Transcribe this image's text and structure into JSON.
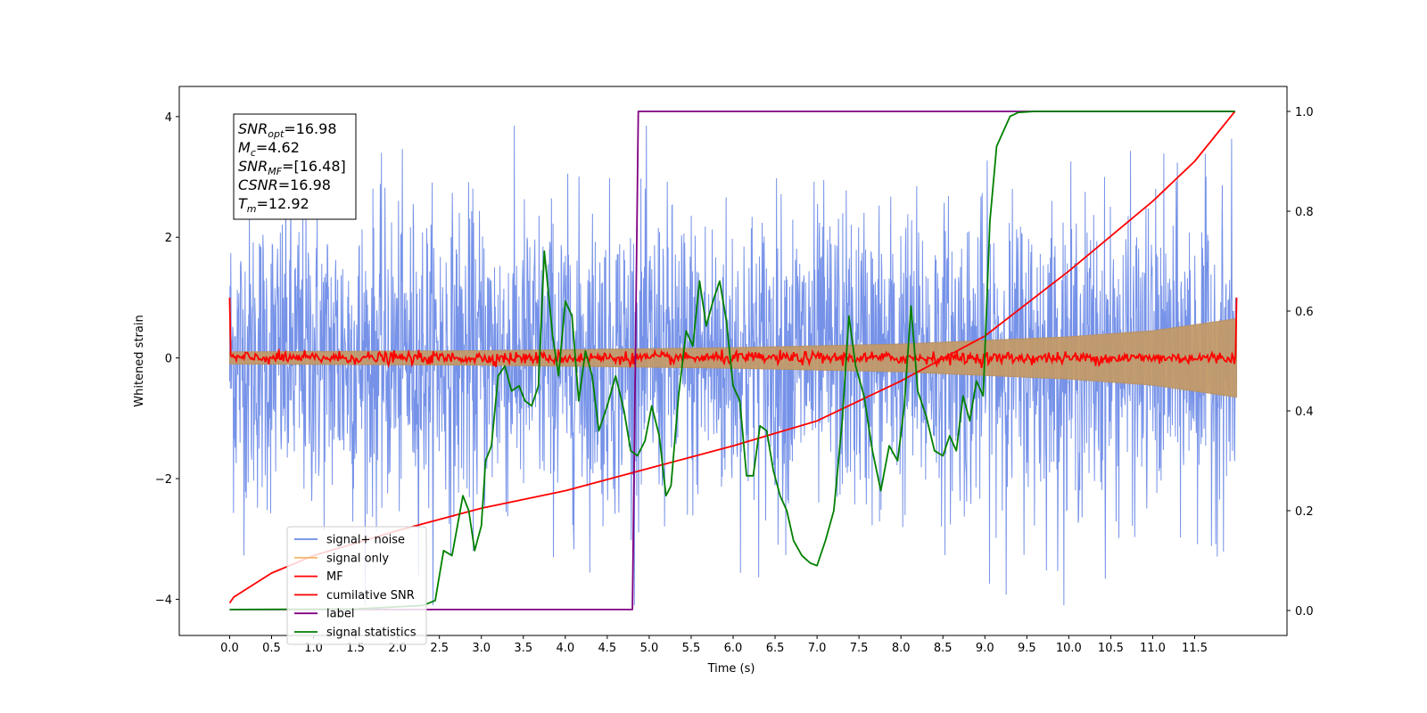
{
  "chart_data": {
    "type": "line",
    "xlabel": "Time (s)",
    "ylabel": "Whitened strain",
    "xlim": [
      -0.6,
      12.6
    ],
    "ylim": [
      -4.6,
      4.5
    ],
    "y2lim": [
      -0.05,
      1.05
    ],
    "x_ticks": [
      0.0,
      0.5,
      1.0,
      1.5,
      2.0,
      2.5,
      3.0,
      3.5,
      4.0,
      4.5,
      5.0,
      5.5,
      6.0,
      6.5,
      7.0,
      7.5,
      8.0,
      8.5,
      9.0,
      9.5,
      10.0,
      10.5,
      11.0,
      11.5
    ],
    "x_tick_labels": [
      "0.0",
      "0.5",
      "1.0",
      "1.5",
      "2.0",
      "2.5",
      "3.0",
      "3.5",
      "4.0",
      "4.5",
      "5.0",
      "5.5",
      "6.0",
      "6.5",
      "7.0",
      "7.5",
      "8.0",
      "8.5",
      "9.0",
      "9.5",
      "10.0",
      "10.5",
      "11.0",
      "11.5"
    ],
    "y_ticks": [
      -4,
      -2,
      0,
      2,
      4
    ],
    "y_tick_labels": [
      "−4",
      "−2",
      "0",
      "2",
      "4"
    ],
    "y2_ticks": [
      0.0,
      0.2,
      0.4,
      0.6,
      0.8,
      1.0
    ],
    "y2_tick_labels": [
      "0.0",
      "0.2",
      "0.4",
      "0.6",
      "0.8",
      "1.0"
    ],
    "grid": false,
    "legend_position": "lower-left",
    "series": [
      {
        "name": "signal+ noise",
        "color": "#6a89e6",
        "axis": "left",
        "t_range": [
          0.0,
          12.0
        ],
        "noise_amplitude": 1.6
      },
      {
        "name": "signal only",
        "color": "#f5b870",
        "axis": "left",
        "t_range": [
          0.0,
          12.0
        ],
        "envelope": [
          [
            0.0,
            0.1
          ],
          [
            3.0,
            0.12
          ],
          [
            6.0,
            0.17
          ],
          [
            8.0,
            0.23
          ],
          [
            10.0,
            0.35
          ],
          [
            11.0,
            0.45
          ],
          [
            12.0,
            0.65
          ]
        ]
      },
      {
        "name": "MF",
        "color": "#ff0000",
        "axis": "left",
        "t_range": [
          0.0,
          12.0
        ],
        "level": 0.0,
        "end_values": [
          1.0,
          1.0
        ]
      },
      {
        "name": "cumilative SNR",
        "color": "#ff0000",
        "axis": "right",
        "points": [
          [
            0.0,
            0.015
          ],
          [
            0.05,
            0.027
          ],
          [
            0.5,
            0.075
          ],
          [
            1.0,
            0.11
          ],
          [
            2.0,
            0.16
          ],
          [
            3.0,
            0.205
          ],
          [
            4.0,
            0.24
          ],
          [
            5.0,
            0.285
          ],
          [
            6.0,
            0.33
          ],
          [
            7.0,
            0.38
          ],
          [
            8.0,
            0.46
          ],
          [
            9.0,
            0.55
          ],
          [
            10.0,
            0.68
          ],
          [
            11.0,
            0.82
          ],
          [
            11.5,
            0.9
          ],
          [
            11.98,
            1.0
          ]
        ]
      },
      {
        "name": "label",
        "color": "#800080",
        "axis": "right",
        "points": [
          [
            0.0,
            0.002
          ],
          [
            4.8,
            0.002
          ],
          [
            4.87,
            1.0
          ],
          [
            11.98,
            1.0
          ]
        ]
      },
      {
        "name": "signal statistics",
        "color": "#008000",
        "axis": "right",
        "points": [
          [
            0.0,
            0.002
          ],
          [
            1.5,
            0.003
          ],
          [
            2.3,
            0.01
          ],
          [
            2.45,
            0.02
          ],
          [
            2.55,
            0.12
          ],
          [
            2.65,
            0.11
          ],
          [
            2.78,
            0.23
          ],
          [
            2.85,
            0.2
          ],
          [
            2.92,
            0.12
          ],
          [
            3.0,
            0.17
          ],
          [
            3.05,
            0.3
          ],
          [
            3.12,
            0.33
          ],
          [
            3.2,
            0.47
          ],
          [
            3.28,
            0.49
          ],
          [
            3.36,
            0.44
          ],
          [
            3.45,
            0.45
          ],
          [
            3.52,
            0.42
          ],
          [
            3.6,
            0.41
          ],
          [
            3.68,
            0.45
          ],
          [
            3.75,
            0.72
          ],
          [
            3.85,
            0.55
          ],
          [
            3.92,
            0.47
          ],
          [
            4.0,
            0.62
          ],
          [
            4.08,
            0.59
          ],
          [
            4.16,
            0.42
          ],
          [
            4.24,
            0.52
          ],
          [
            4.32,
            0.47
          ],
          [
            4.4,
            0.36
          ],
          [
            4.5,
            0.41
          ],
          [
            4.6,
            0.47
          ],
          [
            4.7,
            0.4
          ],
          [
            4.78,
            0.32
          ],
          [
            4.86,
            0.31
          ],
          [
            4.95,
            0.34
          ],
          [
            5.03,
            0.41
          ],
          [
            5.12,
            0.35
          ],
          [
            5.2,
            0.23
          ],
          [
            5.26,
            0.25
          ],
          [
            5.35,
            0.43
          ],
          [
            5.44,
            0.56
          ],
          [
            5.52,
            0.53
          ],
          [
            5.6,
            0.66
          ],
          [
            5.68,
            0.57
          ],
          [
            5.76,
            0.62
          ],
          [
            5.84,
            0.66
          ],
          [
            5.92,
            0.58
          ],
          [
            6.0,
            0.45
          ],
          [
            6.08,
            0.42
          ],
          [
            6.16,
            0.27
          ],
          [
            6.24,
            0.27
          ],
          [
            6.32,
            0.37
          ],
          [
            6.4,
            0.36
          ],
          [
            6.48,
            0.28
          ],
          [
            6.56,
            0.23
          ],
          [
            6.64,
            0.2
          ],
          [
            6.72,
            0.14
          ],
          [
            6.82,
            0.11
          ],
          [
            6.92,
            0.095
          ],
          [
            7.0,
            0.09
          ],
          [
            7.1,
            0.14
          ],
          [
            7.2,
            0.2
          ],
          [
            7.3,
            0.38
          ],
          [
            7.38,
            0.59
          ],
          [
            7.46,
            0.49
          ],
          [
            7.56,
            0.43
          ],
          [
            7.66,
            0.32
          ],
          [
            7.76,
            0.24
          ],
          [
            7.86,
            0.33
          ],
          [
            7.96,
            0.3
          ],
          [
            8.04,
            0.41
          ],
          [
            8.12,
            0.61
          ],
          [
            8.2,
            0.44
          ],
          [
            8.3,
            0.39
          ],
          [
            8.4,
            0.32
          ],
          [
            8.5,
            0.31
          ],
          [
            8.58,
            0.35
          ],
          [
            8.66,
            0.32
          ],
          [
            8.74,
            0.43
          ],
          [
            8.82,
            0.38
          ],
          [
            8.9,
            0.46
          ],
          [
            8.98,
            0.43
          ],
          [
            9.06,
            0.78
          ],
          [
            9.14,
            0.93
          ],
          [
            9.22,
            0.96
          ],
          [
            9.3,
            0.99
          ],
          [
            9.4,
            0.998
          ],
          [
            9.6,
            1.0
          ],
          [
            11.98,
            1.0
          ]
        ]
      }
    ],
    "annotation": {
      "lines": [
        {
          "base": "SNR",
          "sub": "opt",
          "value": "=16.98"
        },
        {
          "base": "M",
          "sub": "c",
          "value": "=4.62"
        },
        {
          "base": "SNR",
          "sub": "MF",
          "value": "=[16.48]"
        },
        {
          "base": "CSNR",
          "sub": "",
          "value": "=16.98"
        },
        {
          "base": "T",
          "sub": "m",
          "value": "=12.92"
        }
      ]
    }
  }
}
